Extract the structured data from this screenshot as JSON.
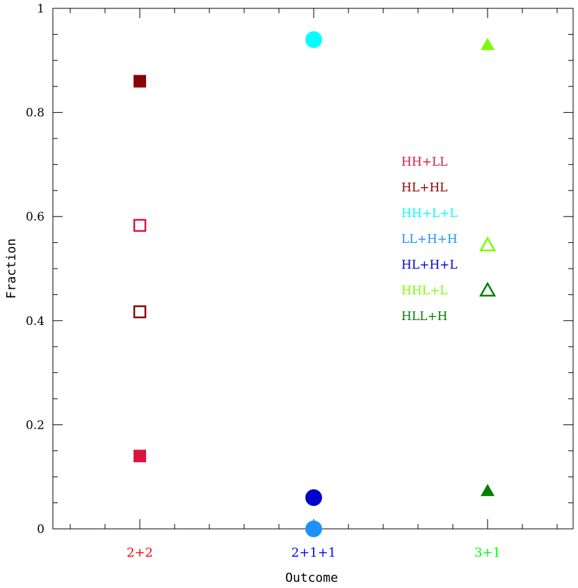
{
  "chart_data": {
    "type": "scatter",
    "xlabel": "Outcome",
    "ylabel": "Fraction",
    "ylim": [
      0,
      1
    ],
    "y_ticks": [
      "0",
      "0.2",
      "0.4",
      "0.6",
      "0.8",
      "1"
    ],
    "categories": [
      {
        "label": "2+2",
        "color": "#ff0000"
      },
      {
        "label": "2+1+1",
        "color": "#0000ff"
      },
      {
        "label": "3+1",
        "color": "#00ff00"
      }
    ],
    "series": [
      {
        "name": "HH+LL",
        "color": "#dc143c",
        "marker": "square",
        "points": [
          {
            "x": "2+2",
            "y": 0.14,
            "filled": true
          },
          {
            "x": "2+2",
            "y": 0.583,
            "filled": false
          }
        ]
      },
      {
        "name": "HL+HL",
        "color": "#8b0000",
        "marker": "square",
        "points": [
          {
            "x": "2+2",
            "y": 0.86,
            "filled": true
          },
          {
            "x": "2+2",
            "y": 0.417,
            "filled": false
          }
        ]
      },
      {
        "name": "HH+L+L",
        "color": "#00ffff",
        "marker": "circle",
        "points": [
          {
            "x": "2+1+1",
            "y": 0.94,
            "filled": true
          }
        ]
      },
      {
        "name": "LL+H+H",
        "color": "#1e90ff",
        "marker": "circle",
        "points": [
          {
            "x": "2+1+1",
            "y": 0.0,
            "filled": true
          }
        ]
      },
      {
        "name": "HL+H+L",
        "color": "#0000cd",
        "marker": "circle",
        "points": [
          {
            "x": "2+1+1",
            "y": 0.06,
            "filled": true
          }
        ]
      },
      {
        "name": "HHL+L",
        "color": "#7cfc00",
        "marker": "triangle",
        "points": [
          {
            "x": "3+1",
            "y": 0.93,
            "filled": true
          },
          {
            "x": "3+1",
            "y": 0.545,
            "filled": false
          }
        ]
      },
      {
        "name": "HLL+H",
        "color": "#008000",
        "marker": "triangle",
        "points": [
          {
            "x": "3+1",
            "y": 0.073,
            "filled": true
          },
          {
            "x": "3+1",
            "y": 0.458,
            "filled": false
          }
        ]
      }
    ],
    "legend_position": "right-middle",
    "grid": false
  }
}
